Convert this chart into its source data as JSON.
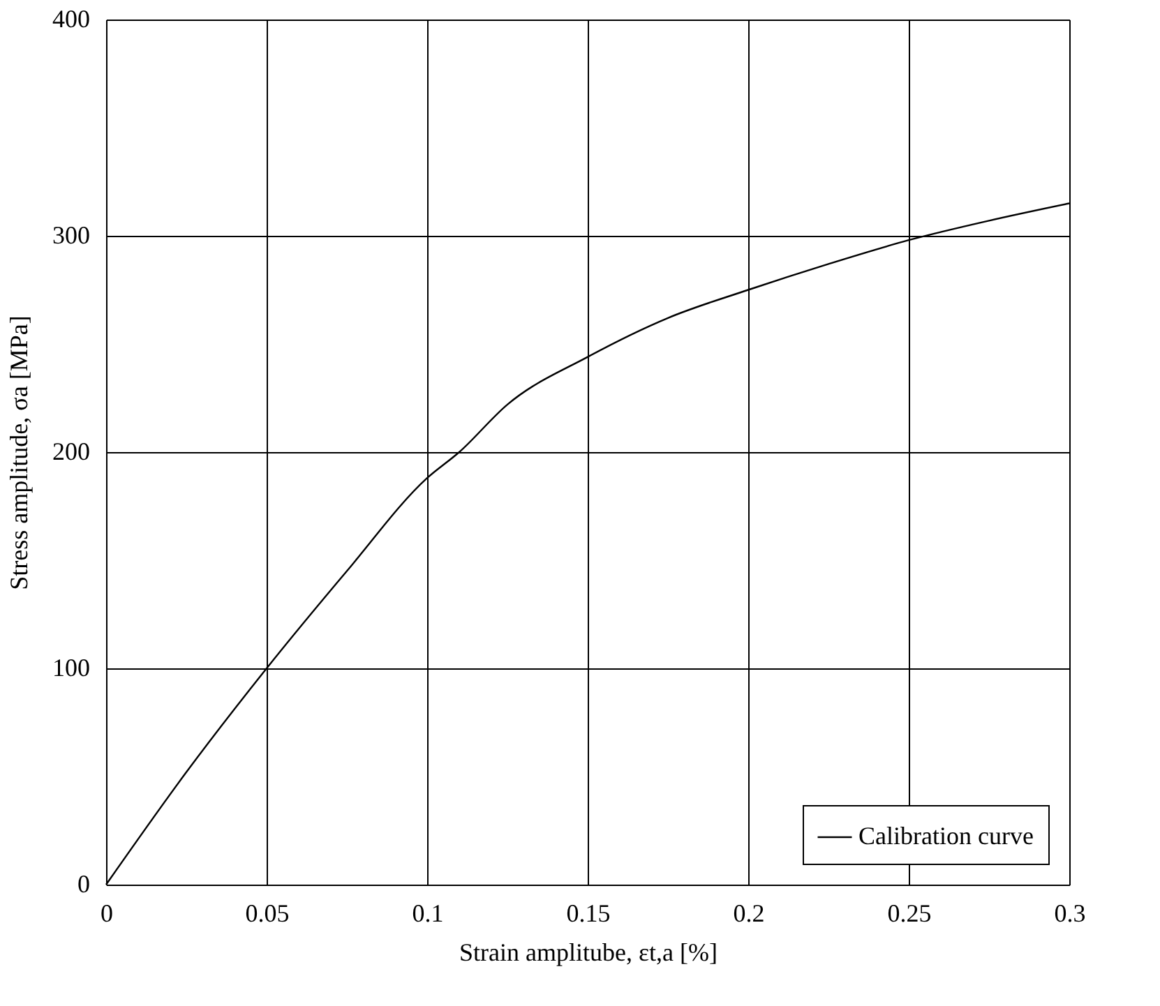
{
  "chart_data": {
    "type": "line",
    "xlabel": "Strain amplitube, εt,a [%]",
    "ylabel": "Stress amplitude, σa [MPa]",
    "x": [
      0,
      0.025,
      0.05,
      0.075,
      0.1,
      0.11,
      0.125,
      0.15,
      0.175,
      0.2,
      0.225,
      0.25,
      0.275,
      0.3
    ],
    "series": [
      {
        "name": "Calibration curve",
        "color": "#000000",
        "values": [
          0,
          52,
          100,
          145,
          188,
          200,
          222,
          244,
          262,
          275,
          287,
          298,
          307,
          315
        ]
      }
    ],
    "xlim": [
      0,
      0.3
    ],
    "xticks": [
      0,
      0.05,
      0.1,
      0.15,
      0.2,
      0.25,
      0.3
    ],
    "ylim": [
      0,
      400
    ],
    "yticks": [
      0,
      100,
      200,
      300,
      400
    ],
    "grid": true,
    "legend": "bottom right",
    "marker": "none",
    "line_style": "solid"
  }
}
